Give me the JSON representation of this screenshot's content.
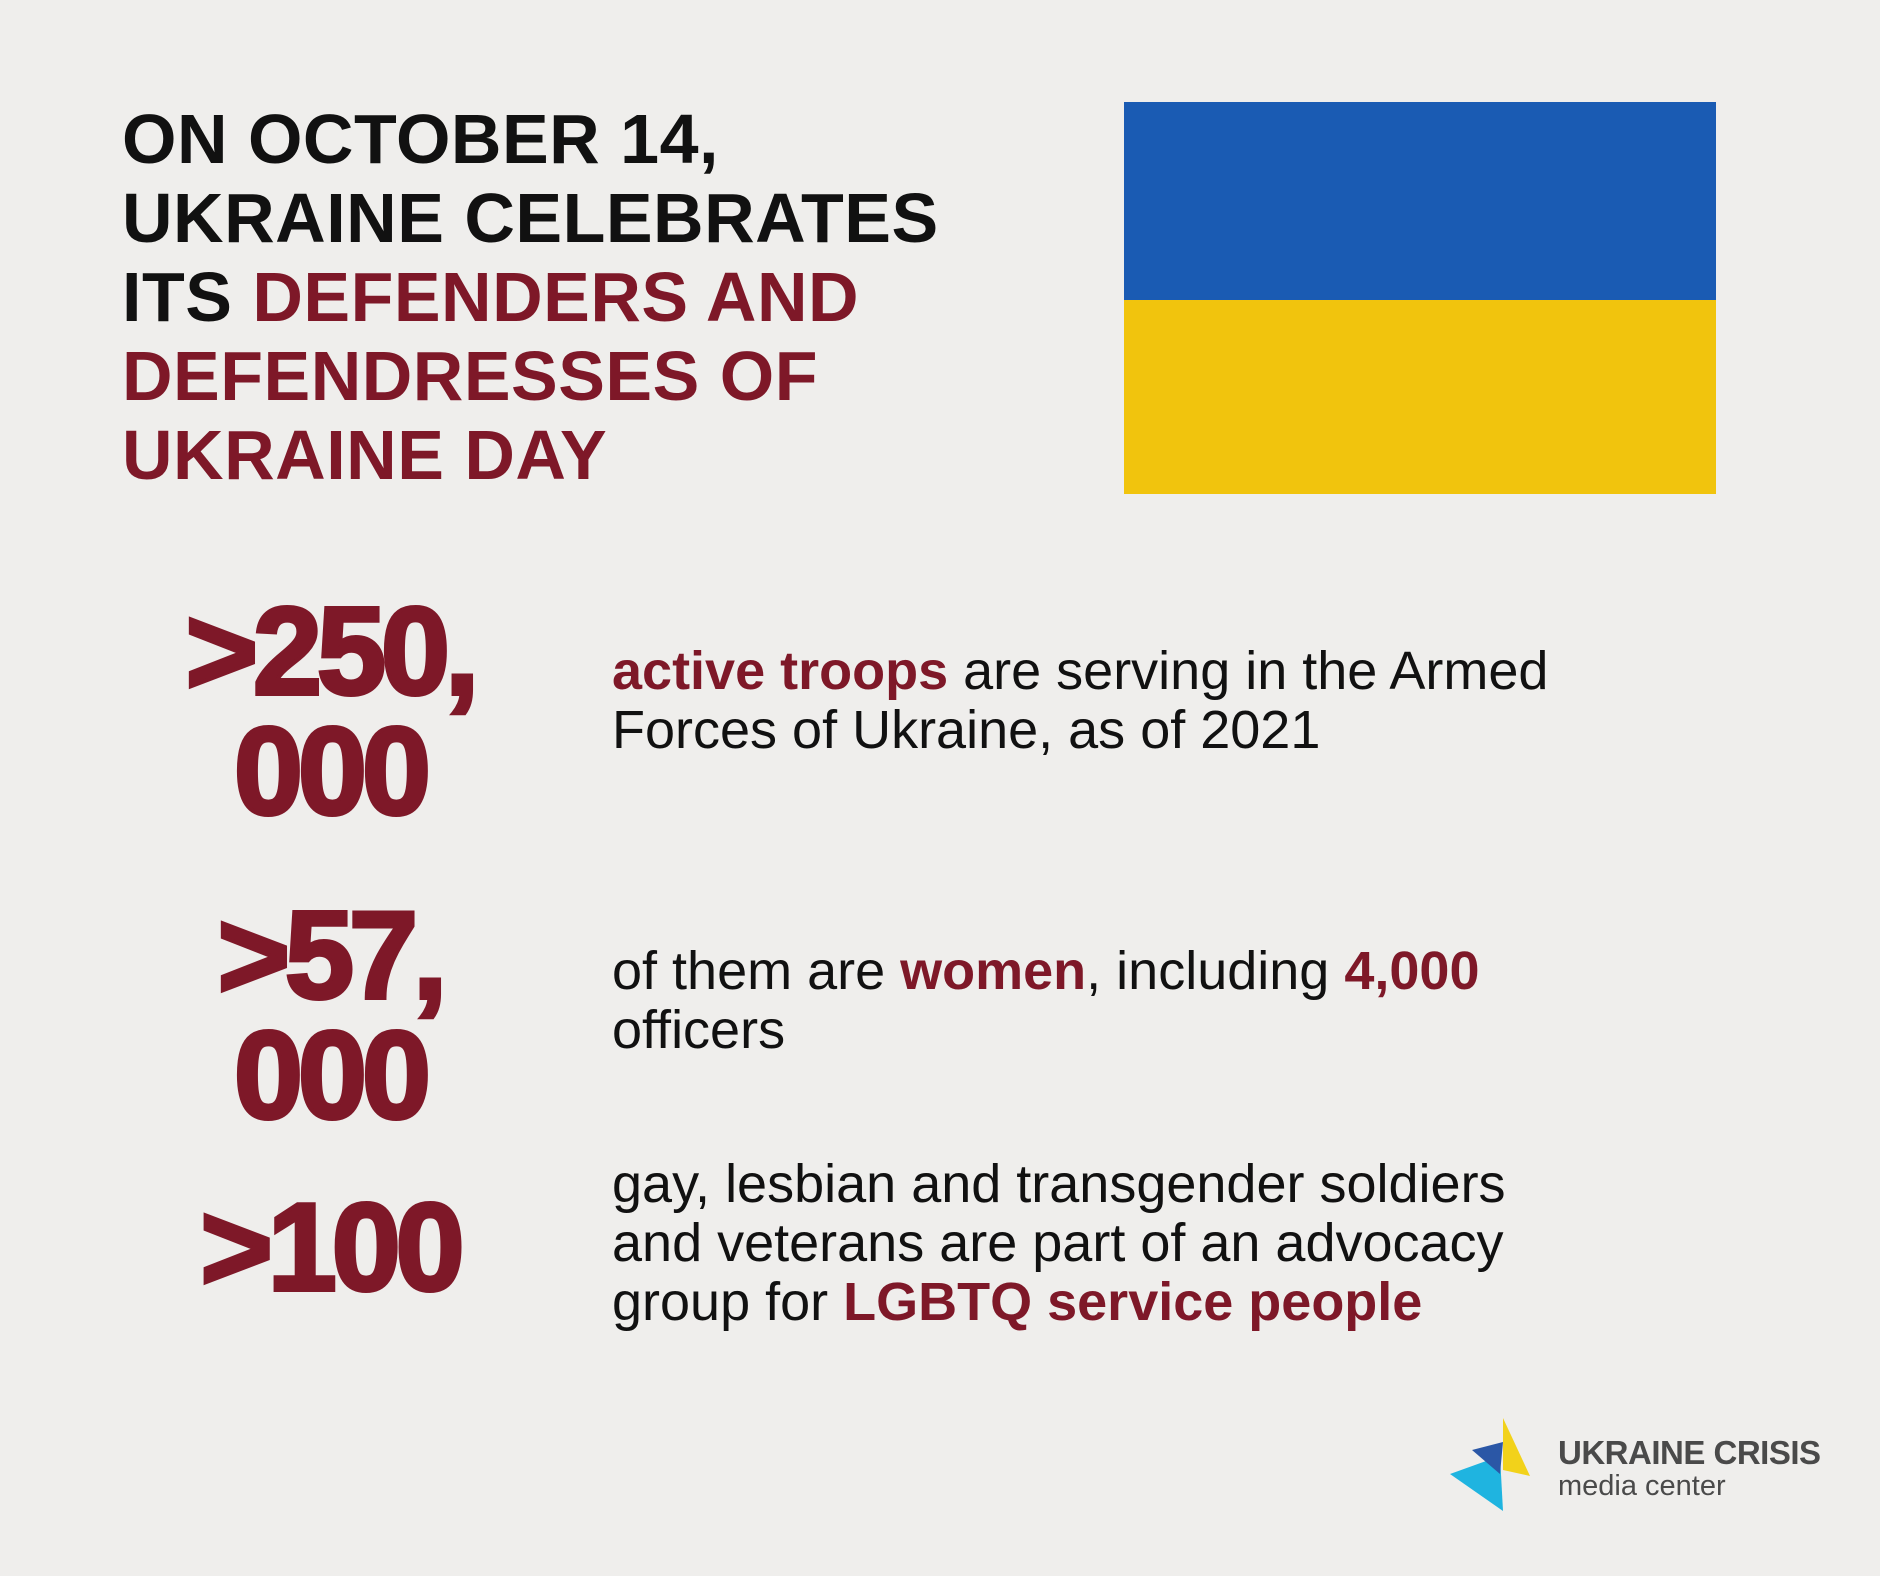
{
  "title_lines": [
    [
      {
        "text": "ON OCTOBER 14,",
        "highlight": false
      }
    ],
    [
      {
        "text": "UKRAINE CELEBRATES",
        "highlight": false
      }
    ],
    [
      {
        "text": "ITS ",
        "highlight": false
      },
      {
        "text": "DEFENDERS AND",
        "highlight": true
      }
    ],
    [
      {
        "text": "DEFENDRESSES OF",
        "highlight": true
      }
    ],
    [
      {
        "text": "UKRAINE DAY",
        "highlight": true
      }
    ]
  ],
  "stats": [
    {
      "number_lines": [
        ">250,",
        "000"
      ],
      "lines": [
        [
          {
            "text": "active troops",
            "highlight": true
          },
          {
            "text": " are serving in the Armed",
            "highlight": false
          }
        ],
        [
          {
            "text": "Forces of Ukraine, as of 2021",
            "highlight": false
          }
        ]
      ]
    },
    {
      "number_lines": [
        ">57,",
        "000"
      ],
      "lines": [
        [
          {
            "text": "of them are ",
            "highlight": false
          },
          {
            "text": "women",
            "highlight": true
          },
          {
            "text": ", including ",
            "highlight": false
          },
          {
            "text": "4,000",
            "highlight": true
          }
        ],
        [
          {
            "text": "officers",
            "highlight": false
          }
        ]
      ]
    },
    {
      "number_lines": [
        ">100"
      ],
      "lines": [
        [
          {
            "text": "gay, lesbian and transgender soldiers",
            "highlight": false
          }
        ],
        [
          {
            "text": "and veterans are part of an advocacy",
            "highlight": false
          }
        ],
        [
          {
            "text": "group for ",
            "highlight": false
          },
          {
            "text": "LGBTQ service people",
            "highlight": true
          }
        ]
      ]
    }
  ],
  "logo": {
    "name": "UKRAINE CRISIS",
    "subtitle": "media center"
  }
}
